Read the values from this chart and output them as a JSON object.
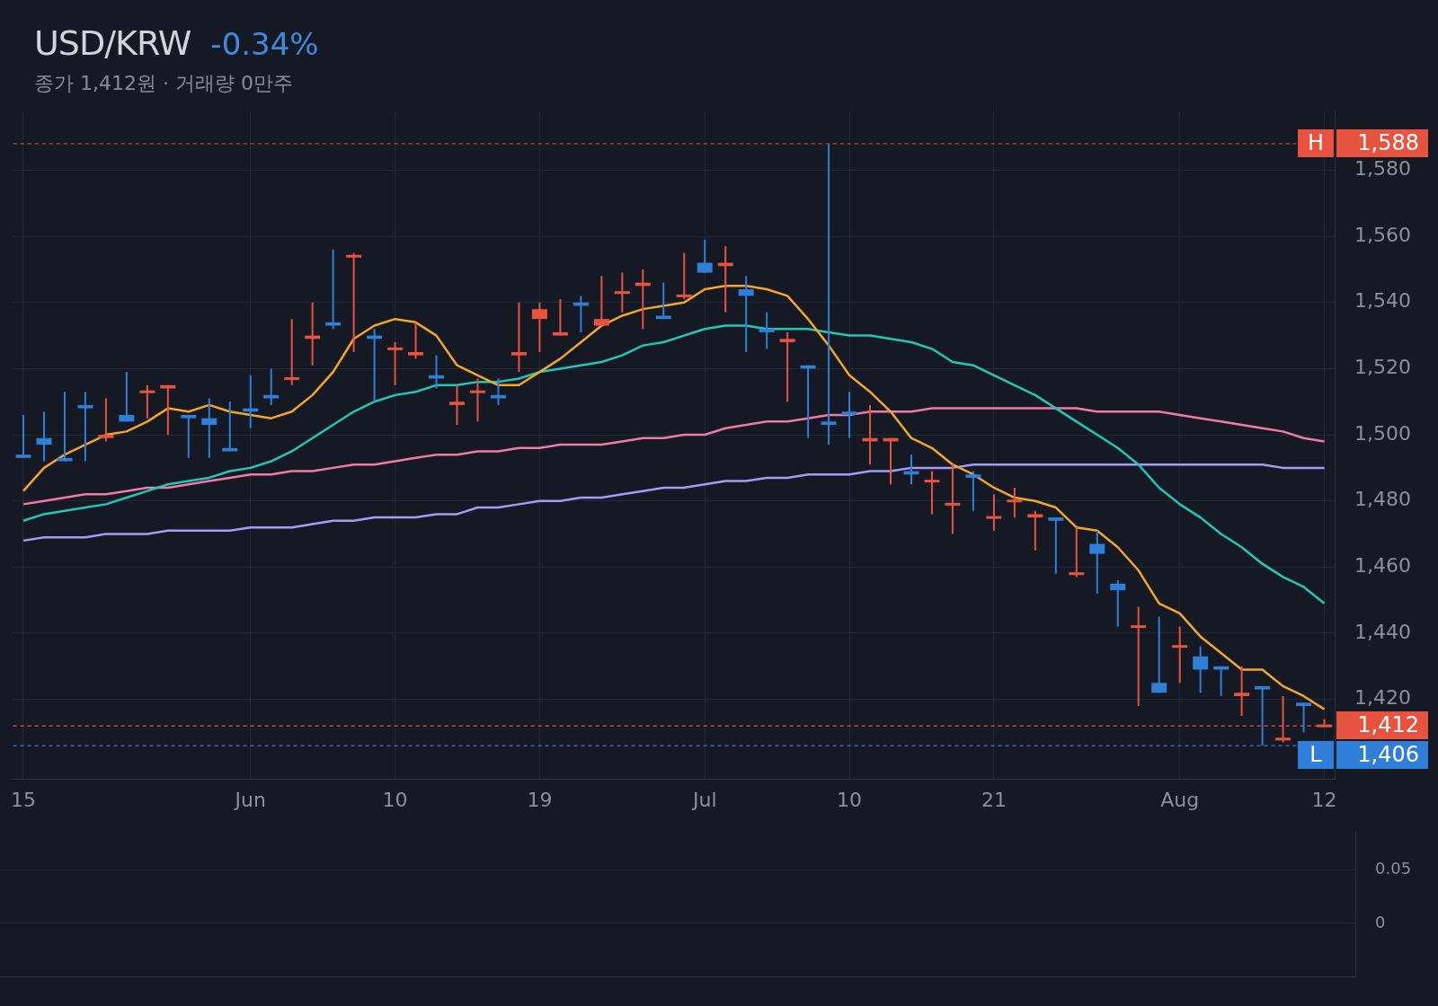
{
  "chart_data": [
    {
      "type": "candlestick",
      "title": "USD/KRW",
      "subtitle": "종가 1,412원 · 거래량 0만주",
      "annotations": [
        "-0.34%",
        {
          "text": "H",
          "y": 1588
        },
        {
          "text": "L",
          "y": 1406
        }
      ],
      "categories": [
        "15",
        null,
        null,
        null,
        null,
        null,
        null,
        null,
        null,
        null,
        null,
        "Jun",
        null,
        null,
        null,
        null,
        null,
        null,
        "10",
        null,
        null,
        null,
        null,
        null,
        null,
        "19",
        null,
        null,
        null,
        null,
        null,
        null,
        null,
        "Jul",
        null,
        null,
        null,
        null,
        null,
        null,
        "10",
        null,
        null,
        null,
        null,
        null,
        null,
        "21",
        null,
        null,
        null,
        null,
        null,
        null,
        null,
        null,
        "Aug",
        null,
        null,
        null,
        null,
        null,
        null,
        "12"
      ],
      "ohlc": [
        [
          1494,
          1506,
          1493,
          1493
        ],
        [
          1499,
          1507,
          1492,
          1497
        ],
        [
          1493,
          1513,
          1492,
          1492
        ],
        [
          1509,
          1513,
          1492,
          1508
        ],
        [
          1499,
          1511,
          1498,
          1500
        ],
        [
          1506,
          1519,
          1504,
          1504
        ],
        [
          1513,
          1515,
          1505,
          1513
        ],
        [
          1514,
          1515,
          1500,
          1515
        ],
        [
          1506,
          1506,
          1493,
          1505
        ],
        [
          1505,
          1511,
          1493,
          1503
        ],
        [
          1496,
          1510,
          1495,
          1495
        ],
        [
          1508,
          1518,
          1502,
          1507
        ],
        [
          1512,
          1520,
          1509,
          1511
        ],
        [
          1517,
          1535,
          1515,
          1517
        ],
        [
          1529,
          1540,
          1521,
          1530
        ],
        [
          1534,
          1556,
          1532,
          1533
        ],
        [
          1554,
          1555,
          1525,
          1554
        ],
        [
          1530,
          1532,
          1510,
          1529
        ],
        [
          1526,
          1528,
          1515,
          1526
        ],
        [
          1524,
          1534,
          1523,
          1525
        ],
        [
          1518,
          1524,
          1514,
          1517
        ],
        [
          1509,
          1515,
          1503,
          1510
        ],
        [
          1513,
          1517,
          1504,
          1513
        ],
        [
          1512,
          1517,
          1509,
          1511
        ],
        [
          1524,
          1540,
          1519,
          1525
        ],
        [
          1535,
          1540,
          1525,
          1538
        ],
        [
          1530,
          1541,
          1530,
          1531
        ],
        [
          1540,
          1542,
          1531,
          1539
        ],
        [
          1533,
          1548,
          1533,
          1535
        ],
        [
          1543,
          1549,
          1537,
          1543
        ],
        [
          1545,
          1550,
          1532,
          1546
        ],
        [
          1536,
          1546,
          1535,
          1535
        ],
        [
          1542,
          1555,
          1541,
          1542
        ],
        [
          1552,
          1559,
          1549,
          1549
        ],
        [
          1551,
          1557,
          1537,
          1552
        ],
        [
          1544,
          1548,
          1525,
          1542
        ],
        [
          1532,
          1537,
          1526,
          1531
        ],
        [
          1528,
          1531,
          1510,
          1529
        ],
        [
          1521,
          1521,
          1499,
          1520
        ],
        [
          1504,
          1588,
          1497,
          1503
        ],
        [
          1507,
          1513,
          1499,
          1506
        ],
        [
          1498,
          1509,
          1491,
          1499
        ],
        [
          1498,
          1499,
          1485,
          1499
        ],
        [
          1489,
          1494,
          1485,
          1488
        ],
        [
          1486,
          1489,
          1476,
          1486
        ],
        [
          1479,
          1491,
          1470,
          1479
        ],
        [
          1488,
          1489,
          1477,
          1487
        ],
        [
          1475,
          1482,
          1471,
          1475
        ],
        [
          1480,
          1484,
          1475,
          1480
        ],
        [
          1475,
          1477,
          1465,
          1476
        ],
        [
          1475,
          1475,
          1458,
          1474
        ],
        [
          1458,
          1472,
          1457,
          1458
        ],
        [
          1467,
          1471,
          1452,
          1464
        ],
        [
          1455,
          1456,
          1442,
          1453
        ],
        [
          1442,
          1448,
          1418,
          1442
        ],
        [
          1425,
          1445,
          1422,
          1422
        ],
        [
          1436,
          1442,
          1425,
          1436
        ],
        [
          1433,
          1436,
          1422,
          1429
        ],
        [
          1430,
          1430,
          1421,
          1429
        ],
        [
          1421,
          1430,
          1415,
          1422
        ],
        [
          1424,
          1424,
          1406,
          1423
        ],
        [
          1408,
          1421,
          1407,
          1408
        ],
        [
          1419,
          1419,
          1410,
          1418
        ],
        [
          1412,
          1414,
          1412,
          1412
        ]
      ],
      "colors": [
        "#2f7ed8",
        "#2f7ed8",
        "#2f7ed8",
        "#2f7ed8",
        "#e8533f",
        "#2f7ed8",
        "#e8533f",
        "#e8533f",
        "#2f7ed8",
        "#2f7ed8",
        "#2f7ed8",
        "#2f7ed8",
        "#2f7ed8",
        "#e8533f",
        "#e8533f",
        "#2f7ed8",
        "#e8533f",
        "#2f7ed8",
        "#e8533f",
        "#e8533f",
        "#2f7ed8",
        "#e8533f",
        "#e8533f",
        "#2f7ed8",
        "#e8533f",
        "#e8533f",
        "#e8533f",
        "#2f7ed8",
        "#e8533f",
        "#e8533f",
        "#e8533f",
        "#2f7ed8",
        "#e8533f",
        "#2f7ed8",
        "#e8533f",
        "#2f7ed8",
        "#2f7ed8",
        "#e8533f",
        "#2f7ed8",
        "#2f7ed8",
        "#2f7ed8",
        "#e8533f",
        "#e8533f",
        "#2f7ed8",
        "#e8533f",
        "#e8533f",
        "#2f7ed8",
        "#e8533f",
        "#e8533f",
        "#e8533f",
        "#2f7ed8",
        "#e8533f",
        "#2f7ed8",
        "#2f7ed8",
        "#e8533f",
        "#2f7ed8",
        "#e8533f",
        "#2f7ed8",
        "#2f7ed8",
        "#e8533f",
        "#2f7ed8",
        "#e8533f",
        "#2f7ed8",
        "#e8533f"
      ],
      "series": [
        {
          "type": "line",
          "color": "#f5a623",
          "values": [
            1483,
            1490,
            1494,
            1497,
            1500,
            1501,
            1504,
            1508,
            1507,
            1509,
            1507,
            1506,
            1505,
            1507,
            1512,
            1519,
            1529,
            1533,
            1535,
            1534,
            1530,
            1521,
            1518,
            1515,
            1515,
            1519,
            1523,
            1528,
            1533,
            1536,
            1538,
            1539,
            1540,
            1544,
            1545,
            1545,
            1544,
            1542,
            1535,
            1527,
            1518,
            1513,
            1507,
            1499,
            1496,
            1491,
            1488,
            1484,
            1481,
            1480,
            1478,
            1472,
            1471,
            1466,
            1459,
            1449,
            1446,
            1439,
            1434,
            1429,
            1429,
            1424,
            1421,
            1417
          ]
        },
        {
          "type": "line",
          "color": "#1fc8b8",
          "values": [
            1474,
            1476,
            1477,
            1478,
            1479,
            1481,
            1483,
            1485,
            1486,
            1487,
            1489,
            1490,
            1492,
            1495,
            1499,
            1503,
            1507,
            1510,
            1512,
            1513,
            1515,
            1515,
            1516,
            1516,
            1517,
            1519,
            1520,
            1521,
            1522,
            1524,
            1527,
            1528,
            1530,
            1532,
            1533,
            1533,
            1532,
            1532,
            1532,
            1531,
            1530,
            1530,
            1529,
            1528,
            1526,
            1522,
            1521,
            1518,
            1515,
            1512,
            1508,
            1504,
            1500,
            1496,
            1491,
            1484,
            1479,
            1475,
            1470,
            1466,
            1461,
            1457,
            1454,
            1449
          ]
        },
        {
          "type": "line",
          "color": "#f07aa8",
          "values": [
            1479,
            1480,
            1481,
            1482,
            1482,
            1483,
            1484,
            1484,
            1485,
            1486,
            1487,
            1488,
            1488,
            1489,
            1489,
            1490,
            1491,
            1491,
            1492,
            1493,
            1494,
            1494,
            1495,
            1495,
            1496,
            1496,
            1497,
            1497,
            1497,
            1498,
            1499,
            1499,
            1500,
            1500,
            1502,
            1503,
            1504,
            1504,
            1505,
            1506,
            1506,
            1507,
            1507,
            1507,
            1508,
            1508,
            1508,
            1508,
            1508,
            1508,
            1508,
            1508,
            1507,
            1507,
            1507,
            1507,
            1506,
            1505,
            1504,
            1503,
            1502,
            1501,
            1499,
            1498
          ]
        },
        {
          "type": "line",
          "color": "#a59cf5",
          "values": [
            1468,
            1469,
            1469,
            1469,
            1470,
            1470,
            1470,
            1471,
            1471,
            1471,
            1471,
            1472,
            1472,
            1472,
            1473,
            1474,
            1474,
            1475,
            1475,
            1475,
            1476,
            1476,
            1478,
            1478,
            1479,
            1480,
            1480,
            1481,
            1481,
            1482,
            1483,
            1484,
            1484,
            1485,
            1486,
            1486,
            1487,
            1487,
            1488,
            1488,
            1488,
            1489,
            1489,
            1490,
            1490,
            1490,
            1491,
            1491,
            1491,
            1491,
            1491,
            1491,
            1491,
            1491,
            1491,
            1491,
            1491,
            1491,
            1491,
            1491,
            1491,
            1490,
            1490,
            1490
          ]
        }
      ],
      "ylim": [
        1396,
        1598
      ],
      "yticks": [
        {
          "value": 1420,
          "label": "1,420"
        },
        {
          "value": 1440,
          "label": "1,440"
        },
        {
          "value": 1460,
          "label": "1,460"
        },
        {
          "value": 1480,
          "label": "1,480"
        },
        {
          "value": 1500,
          "label": "1,500"
        },
        {
          "value": 1520,
          "label": "1,520"
        },
        {
          "value": 1540,
          "label": "1,540"
        },
        {
          "value": 1560,
          "label": "1,560"
        },
        {
          "value": 1580,
          "label": "1,580"
        }
      ],
      "ref_lines": [
        {
          "axis": "y",
          "value": 1588,
          "label": "1,588",
          "color": "#e8533f",
          "line_style": "dashed"
        },
        {
          "axis": "y",
          "value": 1412,
          "label": "1,412",
          "color": "#e8533f",
          "line_style": "dashed"
        },
        {
          "axis": "y",
          "value": 1406,
          "label": "1,406",
          "color": "#2f7ed8",
          "line_style": "dashed"
        }
      ],
      "grid": true
    },
    {
      "type": "bar",
      "categories": [
        null,
        null,
        null,
        null,
        null,
        null,
        null,
        null,
        null,
        null,
        null,
        null,
        null,
        null,
        null,
        null,
        null,
        null,
        null,
        null,
        null,
        null,
        null,
        null,
        null,
        null,
        null,
        null,
        null,
        null,
        null,
        null,
        null,
        null,
        null,
        null,
        null,
        null,
        null,
        null,
        null,
        null,
        null,
        null,
        null,
        null,
        null,
        null,
        null,
        null,
        null,
        null,
        null,
        null,
        null,
        null,
        null,
        null,
        null,
        null,
        null,
        null,
        null,
        null
      ],
      "values": [
        0,
        0,
        0,
        0,
        0,
        0,
        0,
        0,
        0,
        0,
        0,
        0,
        0,
        0,
        0,
        0,
        0,
        0,
        0,
        0,
        0,
        0,
        0,
        0,
        0,
        0,
        0,
        0,
        0,
        0,
        0,
        0,
        0,
        0,
        0,
        0,
        0,
        0,
        0,
        0,
        0,
        0,
        0,
        0,
        0,
        0,
        0,
        0,
        0,
        0,
        0,
        0,
        0,
        0,
        0,
        0,
        0,
        0,
        0,
        0,
        0,
        0,
        0,
        0
      ],
      "colors": [
        "#2f7ed8",
        "#2f7ed8",
        "#2f7ed8",
        "#2f7ed8",
        "#e8533f",
        "#2f7ed8",
        "#e8533f",
        "#e8533f",
        "#2f7ed8",
        "#2f7ed8",
        "#2f7ed8",
        "#2f7ed8",
        "#2f7ed8",
        "#e8533f",
        "#e8533f",
        "#2f7ed8",
        "#e8533f",
        "#2f7ed8",
        "#e8533f",
        "#e8533f",
        "#2f7ed8",
        "#e8533f",
        "#e8533f",
        "#2f7ed8",
        "#e8533f",
        "#e8533f",
        "#e8533f",
        "#2f7ed8",
        "#e8533f",
        "#e8533f",
        "#e8533f",
        "#2f7ed8",
        "#e8533f",
        "#2f7ed8",
        "#e8533f",
        "#2f7ed8",
        "#2f7ed8",
        "#e8533f",
        "#2f7ed8",
        "#2f7ed8",
        "#2f7ed8",
        "#e8533f",
        "#e8533f",
        "#2f7ed8",
        "#e8533f",
        "#e8533f",
        "#2f7ed8",
        "#e8533f",
        "#e8533f",
        "#e8533f",
        "#2f7ed8",
        "#e8533f",
        "#2f7ed8",
        "#2f7ed8",
        "#e8533f",
        "#2f7ed8",
        "#e8533f",
        "#2f7ed8",
        "#2f7ed8",
        "#e8533f",
        "#2f7ed8",
        "#e8533f",
        "#2f7ed8",
        "#e8533f"
      ],
      "ylim": [
        -0.05,
        0.086
      ],
      "yticks": [
        0,
        0.05
      ],
      "tick_labels": "y",
      "grid": true
    }
  ]
}
